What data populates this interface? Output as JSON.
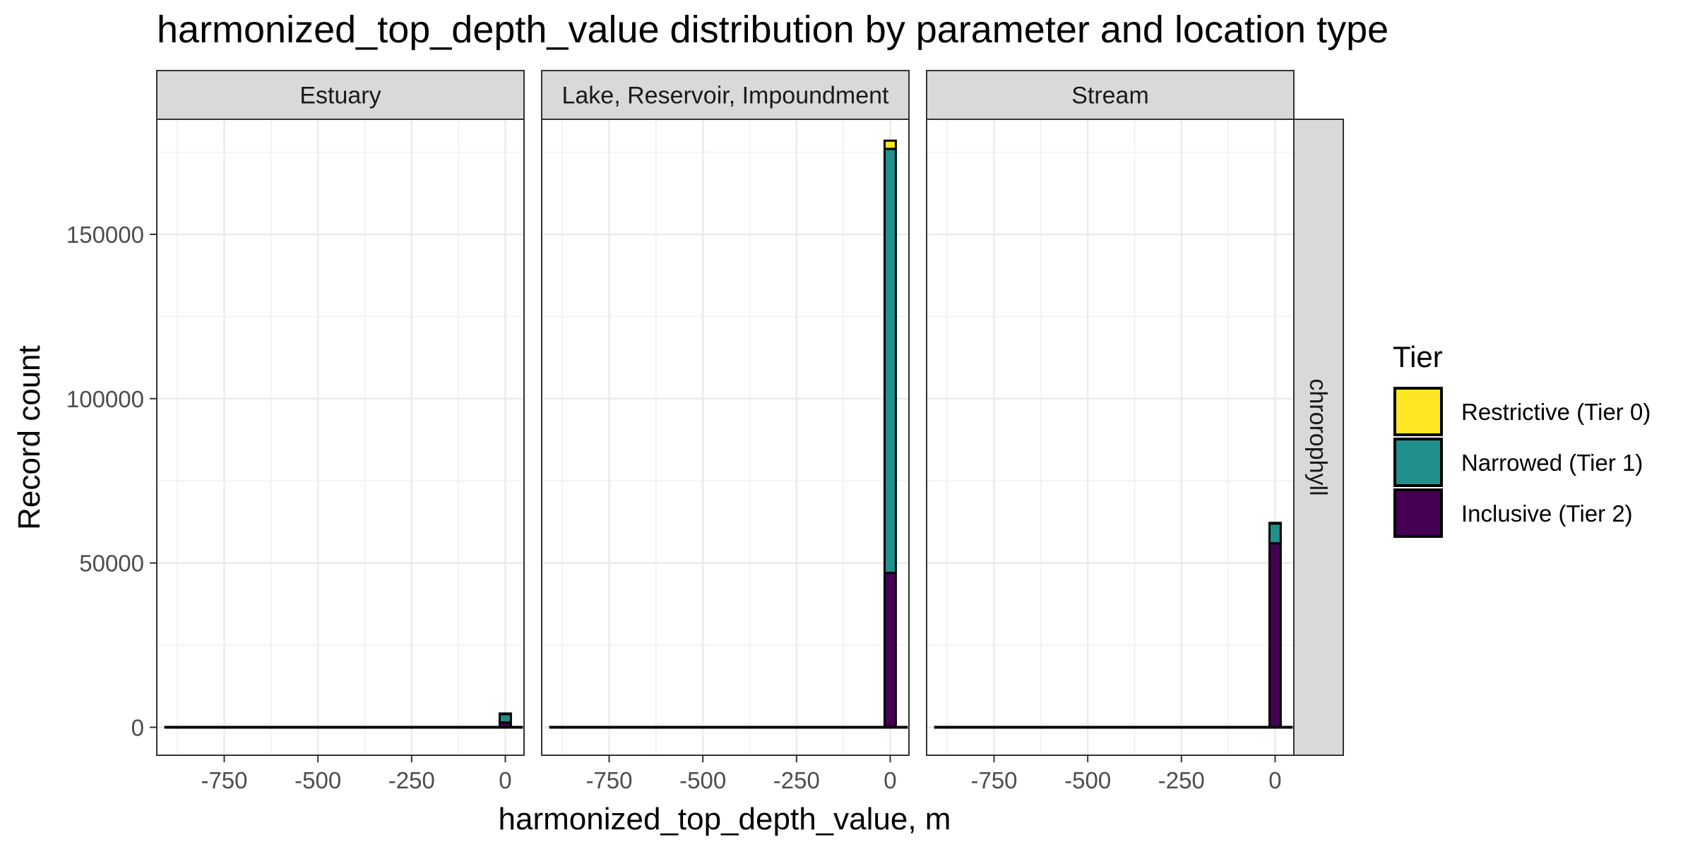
{
  "chart_data": {
    "type": "bar",
    "title": "harmonized_top_depth_value distribution by parameter and location type",
    "xlabel": "harmonized_top_depth_value, m",
    "ylabel": "Record count",
    "row_facet": "chrorophyll",
    "xlim": [
      -930,
      50
    ],
    "ylim": [
      -8500,
      185000
    ],
    "x_ticks": [
      -750,
      -500,
      -250,
      0
    ],
    "x_tick_labels": [
      "-750",
      "-500",
      "-250",
      "0"
    ],
    "y_ticks": [
      0,
      50000,
      100000,
      150000
    ],
    "y_tick_labels": [
      "0",
      "50000",
      "100000",
      "150000"
    ],
    "grid": true,
    "baseline_range": [
      -910,
      47
    ],
    "bin_width": 30,
    "legend": {
      "title": "Tier",
      "position": "right",
      "items": [
        {
          "label": "Restrictive (Tier 0)",
          "color": "#FDE725"
        },
        {
          "label": "Narrowed (Tier 1)",
          "color": "#21908C"
        },
        {
          "label": "Inclusive (Tier 2)",
          "color": "#440154"
        }
      ]
    },
    "series": [
      {
        "name": "Inclusive (Tier 2)",
        "color": "#440154"
      },
      {
        "name": "Narrowed (Tier 1)",
        "color": "#21908C"
      },
      {
        "name": "Restrictive (Tier 0)",
        "color": "#FDE725"
      }
    ],
    "panels": [
      {
        "label": "Estuary",
        "bin_center": 0,
        "values": {
          "inclusive": 1500,
          "narrowed": 2500,
          "restrictive": 200
        }
      },
      {
        "label": "Lake, Reservoir, Impoundment",
        "bin_center": 0,
        "values": {
          "inclusive": 47000,
          "narrowed": 129000,
          "restrictive": 2500
        }
      },
      {
        "label": "Stream",
        "bin_center": 0,
        "values": {
          "inclusive": 56000,
          "narrowed": 6000,
          "restrictive": 200
        }
      }
    ]
  }
}
